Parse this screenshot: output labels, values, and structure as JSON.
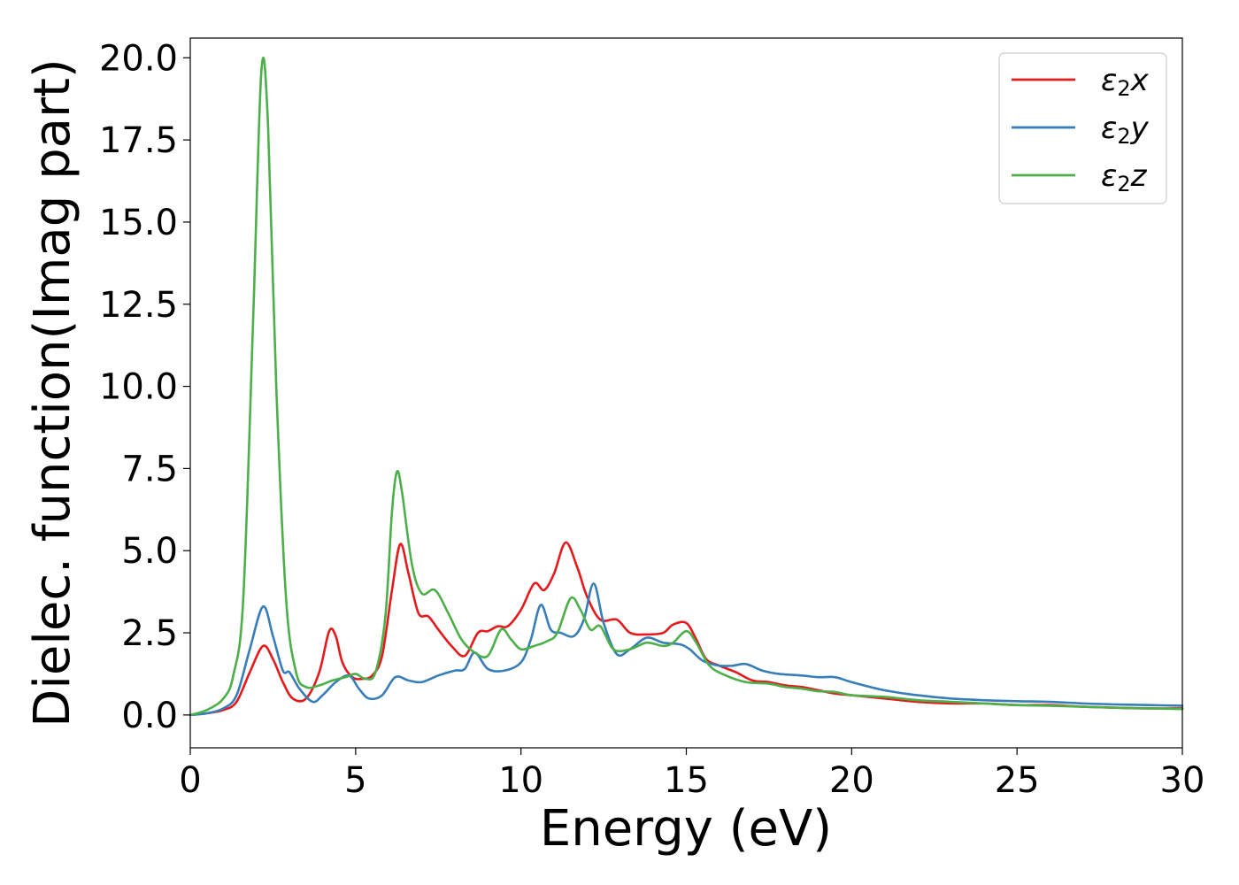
{
  "chart_data": {
    "type": "line",
    "title": "",
    "xlabel": "Energy (eV)",
    "ylabel": "Dielec. function(Imag part)",
    "xlim": [
      0,
      30
    ],
    "ylim": [
      -1.0,
      20.6
    ],
    "xticks": [
      0,
      5,
      10,
      15,
      20,
      25,
      30
    ],
    "xtick_labels": [
      "0",
      "5",
      "10",
      "15",
      "20",
      "25",
      "30"
    ],
    "yticks": [
      0.0,
      2.5,
      5.0,
      7.5,
      10.0,
      12.5,
      15.0,
      17.5,
      20.0
    ],
    "ytick_labels": [
      "0.0",
      "2.5",
      "5.0",
      "7.5",
      "10.0",
      "12.5",
      "15.0",
      "17.5",
      "20.0"
    ],
    "grid": false,
    "legend_position": "top-right",
    "series": [
      {
        "name": "ε₂x",
        "legend_base": "ε",
        "legend_sub": "2",
        "legend_suffix": "x",
        "color": "#e41a1c",
        "points": [
          [
            0,
            0
          ],
          [
            0.5,
            0.05
          ],
          [
            1.0,
            0.15
          ],
          [
            1.4,
            0.4
          ],
          [
            1.8,
            1.3
          ],
          [
            2.2,
            2.1
          ],
          [
            2.5,
            1.7
          ],
          [
            2.8,
            1.0
          ],
          [
            3.1,
            0.5
          ],
          [
            3.5,
            0.5
          ],
          [
            3.9,
            1.3
          ],
          [
            4.2,
            2.55
          ],
          [
            4.4,
            2.4
          ],
          [
            4.6,
            1.6
          ],
          [
            4.9,
            1.15
          ],
          [
            5.2,
            1.1
          ],
          [
            5.5,
            1.2
          ],
          [
            5.8,
            1.8
          ],
          [
            6.1,
            3.8
          ],
          [
            6.35,
            5.2
          ],
          [
            6.6,
            4.3
          ],
          [
            6.9,
            3.1
          ],
          [
            7.2,
            3.0
          ],
          [
            7.5,
            2.6
          ],
          [
            7.9,
            2.1
          ],
          [
            8.3,
            1.8
          ],
          [
            8.7,
            2.5
          ],
          [
            9.0,
            2.55
          ],
          [
            9.3,
            2.7
          ],
          [
            9.6,
            2.7
          ],
          [
            10.0,
            3.2
          ],
          [
            10.4,
            4.0
          ],
          [
            10.7,
            3.8
          ],
          [
            11.0,
            4.3
          ],
          [
            11.35,
            5.25
          ],
          [
            11.7,
            4.5
          ],
          [
            12.0,
            3.6
          ],
          [
            12.4,
            2.9
          ],
          [
            12.9,
            2.9
          ],
          [
            13.3,
            2.5
          ],
          [
            13.8,
            2.45
          ],
          [
            14.3,
            2.5
          ],
          [
            14.6,
            2.75
          ],
          [
            15.0,
            2.8
          ],
          [
            15.3,
            2.3
          ],
          [
            15.6,
            1.7
          ],
          [
            16.0,
            1.5
          ],
          [
            16.5,
            1.3
          ],
          [
            17.0,
            1.05
          ],
          [
            17.5,
            1.0
          ],
          [
            18.0,
            0.9
          ],
          [
            18.5,
            0.85
          ],
          [
            19.0,
            0.75
          ],
          [
            19.5,
            0.65
          ],
          [
            20.0,
            0.6
          ],
          [
            21.0,
            0.5
          ],
          [
            22.0,
            0.4
          ],
          [
            23.0,
            0.35
          ],
          [
            24.0,
            0.35
          ],
          [
            25.0,
            0.3
          ],
          [
            26.0,
            0.3
          ],
          [
            27.0,
            0.25
          ],
          [
            28.0,
            0.22
          ],
          [
            29.0,
            0.2
          ],
          [
            30.0,
            0.2
          ]
        ]
      },
      {
        "name": "ε₂y",
        "legend_base": "ε",
        "legend_sub": "2",
        "legend_suffix": "y",
        "color": "#377eb8",
        "points": [
          [
            0,
            0
          ],
          [
            0.5,
            0.05
          ],
          [
            1.0,
            0.2
          ],
          [
            1.4,
            0.6
          ],
          [
            1.8,
            2.0
          ],
          [
            2.2,
            3.3
          ],
          [
            2.5,
            2.4
          ],
          [
            2.8,
            1.35
          ],
          [
            3.0,
            1.3
          ],
          [
            3.3,
            0.8
          ],
          [
            3.7,
            0.4
          ],
          [
            4.0,
            0.6
          ],
          [
            4.4,
            1.0
          ],
          [
            4.8,
            1.2
          ],
          [
            5.1,
            0.8
          ],
          [
            5.4,
            0.5
          ],
          [
            5.8,
            0.6
          ],
          [
            6.2,
            1.15
          ],
          [
            6.6,
            1.05
          ],
          [
            7.0,
            1.0
          ],
          [
            7.5,
            1.2
          ],
          [
            8.0,
            1.35
          ],
          [
            8.3,
            1.4
          ],
          [
            8.6,
            1.9
          ],
          [
            9.0,
            1.4
          ],
          [
            9.5,
            1.35
          ],
          [
            10.0,
            1.6
          ],
          [
            10.3,
            2.3
          ],
          [
            10.6,
            3.35
          ],
          [
            10.9,
            2.6
          ],
          [
            11.2,
            2.5
          ],
          [
            11.6,
            2.4
          ],
          [
            11.9,
            2.9
          ],
          [
            12.2,
            4.0
          ],
          [
            12.5,
            2.8
          ],
          [
            12.9,
            1.85
          ],
          [
            13.3,
            2.0
          ],
          [
            13.8,
            2.35
          ],
          [
            14.3,
            2.2
          ],
          [
            14.8,
            2.15
          ],
          [
            15.1,
            2.0
          ],
          [
            15.5,
            1.65
          ],
          [
            16.0,
            1.5
          ],
          [
            16.4,
            1.5
          ],
          [
            16.8,
            1.55
          ],
          [
            17.3,
            1.35
          ],
          [
            17.8,
            1.25
          ],
          [
            18.5,
            1.2
          ],
          [
            19.0,
            1.15
          ],
          [
            19.5,
            1.15
          ],
          [
            20.0,
            1.0
          ],
          [
            21.0,
            0.75
          ],
          [
            22.0,
            0.6
          ],
          [
            23.0,
            0.5
          ],
          [
            24.0,
            0.45
          ],
          [
            25.0,
            0.42
          ],
          [
            26.0,
            0.4
          ],
          [
            27.0,
            0.35
          ],
          [
            28.0,
            0.32
          ],
          [
            29.0,
            0.3
          ],
          [
            30.0,
            0.28
          ]
        ]
      },
      {
        "name": "ε₂z",
        "legend_base": "ε",
        "legend_sub": "2",
        "legend_suffix": "z",
        "color": "#4daf4a",
        "points": [
          [
            0,
            0
          ],
          [
            0.5,
            0.15
          ],
          [
            1.0,
            0.5
          ],
          [
            1.3,
            1.2
          ],
          [
            1.6,
            3.5
          ],
          [
            1.9,
            12.0
          ],
          [
            2.15,
            19.6
          ],
          [
            2.35,
            18.0
          ],
          [
            2.6,
            10.0
          ],
          [
            2.9,
            3.5
          ],
          [
            3.2,
            1.3
          ],
          [
            3.5,
            0.85
          ],
          [
            3.9,
            0.9
          ],
          [
            4.3,
            1.05
          ],
          [
            4.7,
            1.15
          ],
          [
            5.0,
            1.25
          ],
          [
            5.3,
            1.1
          ],
          [
            5.6,
            1.3
          ],
          [
            5.9,
            3.0
          ],
          [
            6.1,
            6.2
          ],
          [
            6.25,
            7.4
          ],
          [
            6.4,
            6.8
          ],
          [
            6.7,
            4.6
          ],
          [
            7.0,
            3.7
          ],
          [
            7.4,
            3.8
          ],
          [
            7.8,
            3.1
          ],
          [
            8.2,
            2.3
          ],
          [
            8.6,
            1.9
          ],
          [
            9.0,
            1.8
          ],
          [
            9.4,
            2.6
          ],
          [
            9.7,
            2.3
          ],
          [
            10.0,
            2.0
          ],
          [
            10.4,
            2.1
          ],
          [
            10.8,
            2.25
          ],
          [
            11.1,
            2.5
          ],
          [
            11.5,
            3.55
          ],
          [
            11.8,
            3.2
          ],
          [
            12.1,
            2.6
          ],
          [
            12.4,
            2.7
          ],
          [
            12.8,
            2.0
          ],
          [
            13.3,
            2.0
          ],
          [
            13.8,
            2.2
          ],
          [
            14.3,
            2.1
          ],
          [
            14.6,
            2.2
          ],
          [
            15.0,
            2.55
          ],
          [
            15.3,
            2.2
          ],
          [
            15.7,
            1.5
          ],
          [
            16.2,
            1.2
          ],
          [
            16.8,
            1.0
          ],
          [
            17.5,
            0.95
          ],
          [
            18.0,
            0.85
          ],
          [
            18.5,
            0.8
          ],
          [
            19.0,
            0.72
          ],
          [
            19.5,
            0.7
          ],
          [
            20.0,
            0.6
          ],
          [
            21.0,
            0.55
          ],
          [
            22.0,
            0.45
          ],
          [
            23.0,
            0.4
          ],
          [
            24.0,
            0.35
          ],
          [
            25.0,
            0.3
          ],
          [
            26.0,
            0.28
          ],
          [
            27.0,
            0.25
          ],
          [
            28.0,
            0.22
          ],
          [
            29.0,
            0.2
          ],
          [
            30.0,
            0.18
          ]
        ]
      }
    ]
  }
}
